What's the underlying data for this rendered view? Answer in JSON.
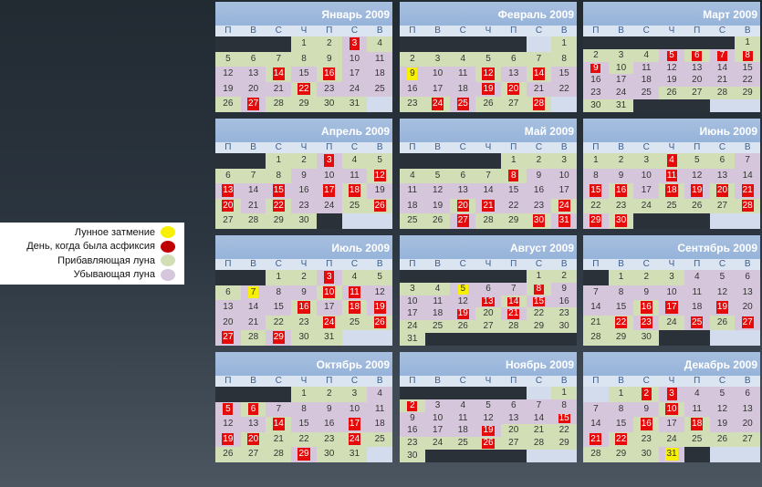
{
  "legend": {
    "items": [
      {
        "label": "Лунное затмение",
        "color": "#f7f000"
      },
      {
        "label": "День, когда была асфиксия",
        "color": "#c00000"
      },
      {
        "label": "Прибавляющая луна",
        "color": "#d2dfb6"
      },
      {
        "label": "Убывающая луна",
        "color": "#d5c6dc"
      }
    ]
  },
  "weekdays": [
    "П",
    "В",
    "С",
    "Ч",
    "П",
    "С",
    "В"
  ],
  "colors": {
    "increasing": "#d2dfb6",
    "decreasing": "#d5c6dc",
    "asphyxia": "#e60b0b",
    "eclipse": "#f7f000",
    "header": "#96b3da"
  },
  "months": [
    {
      "title": "Январь 2009",
      "weeks": [
        [
          "e",
          "e",
          "e",
          "i1",
          "i2",
          "a3",
          "i4"
        ],
        [
          "i5",
          "i6",
          "i7",
          "i8",
          "i9",
          "d10",
          "d11"
        ],
        [
          "d12",
          "d13",
          "a14",
          "d15",
          "a16",
          "d17",
          "d18"
        ],
        [
          "d19",
          "d20",
          "d21",
          "a22",
          "d23",
          "d24",
          "d25"
        ],
        [
          "i26",
          "a27",
          "i28",
          "i29",
          "i30",
          "i31",
          "p"
        ]
      ]
    },
    {
      "title": "Февраль 2009",
      "weeks": [
        [
          "e",
          "e",
          "e",
          "e",
          "e",
          "p",
          "i1"
        ],
        [
          "i2",
          "i3",
          "i4",
          "i5",
          "i6",
          "i7",
          "i8"
        ],
        [
          "y9",
          "d10",
          "d11",
          "a12",
          "d13",
          "a14",
          "d15"
        ],
        [
          "d16",
          "d17",
          "d18",
          "a19",
          "a20",
          "d21",
          "d22"
        ],
        [
          "i23",
          "a24",
          "a25",
          "i26",
          "i27",
          "a28",
          "p"
        ]
      ]
    },
    {
      "title": "Март 2009",
      "weeks": [
        [
          "e",
          "e",
          "e",
          "e",
          "e",
          "e",
          "i1"
        ],
        [
          "i2",
          "i3",
          "i4",
          "a5",
          "a6",
          "a7",
          "a8"
        ],
        [
          "a9",
          "i10",
          "d11",
          "d12",
          "d13",
          "d14",
          "d15"
        ],
        [
          "d16",
          "d17",
          "d18",
          "d19",
          "d20",
          "d21",
          "d22"
        ],
        [
          "d23",
          "d24",
          "d25",
          "i26",
          "i27",
          "i28",
          "i29"
        ],
        [
          "i30",
          "i31",
          "e",
          "e",
          "e",
          "p",
          "p"
        ]
      ]
    },
    {
      "title": "Апрель 2009",
      "weeks": [
        [
          "e",
          "e",
          "i1",
          "i2",
          "a3",
          "i4",
          "i5"
        ],
        [
          "i6",
          "i7",
          "i8",
          "d9",
          "d10",
          "d11",
          "a12"
        ],
        [
          "a13",
          "d14",
          "a15",
          "d16",
          "a17",
          "a18",
          "d19"
        ],
        [
          "a20",
          "d21",
          "a22",
          "d23",
          "d24",
          "i25",
          "a26"
        ],
        [
          "i27",
          "i28",
          "i29",
          "i30",
          "e",
          "p",
          "p"
        ]
      ]
    },
    {
      "title": "Май 2009",
      "weeks": [
        [
          "e",
          "e",
          "e",
          "e",
          "i1",
          "i2",
          "i3"
        ],
        [
          "i4",
          "i5",
          "i6",
          "i7",
          "a8",
          "d9",
          "d10"
        ],
        [
          "d11",
          "d12",
          "d13",
          "d14",
          "d15",
          "d16",
          "d17"
        ],
        [
          "d18",
          "d19",
          "a20",
          "a21",
          "d22",
          "d23",
          "a24"
        ],
        [
          "i25",
          "i26",
          "a27",
          "i28",
          "i29",
          "a30",
          "a31"
        ]
      ]
    },
    {
      "title": "Июнь 2009",
      "weeks": [
        [
          "i1",
          "i2",
          "i3",
          "a4",
          "i5",
          "i6",
          "d7"
        ],
        [
          "d8",
          "d9",
          "d10",
          "a11",
          "d12",
          "d13",
          "d14"
        ],
        [
          "a15",
          "a16",
          "d17",
          "a18",
          "a19",
          "a20",
          "a21"
        ],
        [
          "i22",
          "i23",
          "i24",
          "i25",
          "i26",
          "i27",
          "a28"
        ],
        [
          "a29",
          "a30",
          "e",
          "e",
          "e",
          "p",
          "p"
        ]
      ]
    },
    {
      "title": "Июль 2009",
      "weeks": [
        [
          "e",
          "e",
          "i1",
          "i2",
          "a3",
          "i4",
          "i5"
        ],
        [
          "i6",
          "y7",
          "d8",
          "d9",
          "a10",
          "a11",
          "d12"
        ],
        [
          "d13",
          "d14",
          "d15",
          "a16",
          "d17",
          "a18",
          "a19"
        ],
        [
          "d20",
          "d21",
          "i22",
          "i23",
          "a24",
          "i25",
          "a26"
        ],
        [
          "a27",
          "i28",
          "a29",
          "i30",
          "i31",
          "p",
          "p"
        ]
      ]
    },
    {
      "title": "Август 2009",
      "weeks": [
        [
          "e",
          "e",
          "e",
          "e",
          "e",
          "i1",
          "i2"
        ],
        [
          "i3",
          "i4",
          "y5",
          "d6",
          "d7",
          "a8",
          "d9"
        ],
        [
          "d10",
          "d11",
          "d12",
          "a13",
          "a14",
          "a15",
          "d16"
        ],
        [
          "d17",
          "d18",
          "a19",
          "i20",
          "a21",
          "i22",
          "i23"
        ],
        [
          "i24",
          "i25",
          "i26",
          "i27",
          "i28",
          "i29",
          "i30"
        ],
        [
          "i31",
          "e",
          "e",
          "e",
          "e",
          "e",
          "e"
        ]
      ]
    },
    {
      "title": "Сентябрь 2009",
      "weeks": [
        [
          "e",
          "i1",
          "i2",
          "i3",
          "d4",
          "d5",
          "d6"
        ],
        [
          "d7",
          "d8",
          "d9",
          "d10",
          "d11",
          "d12",
          "d13"
        ],
        [
          "d14",
          "d15",
          "a16",
          "a17",
          "d18",
          "a19",
          "d20"
        ],
        [
          "i21",
          "a22",
          "a23",
          "i24",
          "a25",
          "i26",
          "a27"
        ],
        [
          "i28",
          "i29",
          "i30",
          "e",
          "e",
          "p",
          "p"
        ]
      ]
    },
    {
      "title": "Октябрь 2009",
      "weeks": [
        [
          "e",
          "e",
          "e",
          "i1",
          "i2",
          "i3",
          "d4"
        ],
        [
          "a5",
          "a6",
          "d7",
          "d8",
          "d9",
          "d10",
          "d11"
        ],
        [
          "d12",
          "d13",
          "a14",
          "d15",
          "d16",
          "a17",
          "d18"
        ],
        [
          "a19",
          "a20",
          "i21",
          "i22",
          "i23",
          "a24",
          "i25"
        ],
        [
          "i26",
          "i27",
          "i28",
          "a29",
          "i30",
          "i31",
          "p"
        ]
      ]
    },
    {
      "title": "Ноябрь 2009",
      "weeks": [
        [
          "e",
          "e",
          "e",
          "e",
          "e",
          "p",
          "i1"
        ],
        [
          "a2",
          "d3",
          "d4",
          "d5",
          "d6",
          "d7",
          "d8"
        ],
        [
          "d9",
          "d10",
          "d11",
          "d12",
          "d13",
          "d14",
          "a15"
        ],
        [
          "d16",
          "d17",
          "d18",
          "a19",
          "i20",
          "i21",
          "i22"
        ],
        [
          "i23",
          "i24",
          "i25",
          "a26",
          "i27",
          "i28",
          "i29"
        ],
        [
          "i30",
          "e",
          "e",
          "e",
          "e",
          "p",
          "p"
        ]
      ]
    },
    {
      "title": "Декабрь 2009",
      "weeks": [
        [
          "p",
          "i1",
          "a2",
          "a3",
          "d4",
          "d5",
          "d6"
        ],
        [
          "d7",
          "d8",
          "d9",
          "a10",
          "d11",
          "d12",
          "d13"
        ],
        [
          "d14",
          "d15",
          "a16",
          "d17",
          "a18",
          "d19",
          "d20"
        ],
        [
          "a21",
          "a22",
          "i23",
          "i24",
          "i25",
          "i26",
          "i27"
        ],
        [
          "i28",
          "i29",
          "i30",
          "y31",
          "e",
          "p",
          "p"
        ]
      ]
    }
  ]
}
